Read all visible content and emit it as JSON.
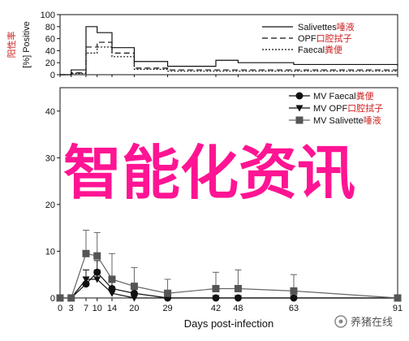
{
  "chart_data": [
    {
      "type": "line",
      "style": "step",
      "ylabel": "[%] Positive",
      "ylabel_annotation": "阳性率",
      "ylim": [
        0,
        100
      ],
      "yticks": [
        0,
        20,
        40,
        60,
        80,
        100
      ],
      "x": [
        0,
        3,
        7,
        10,
        14,
        20,
        29,
        42,
        48,
        63,
        91
      ],
      "xlim": [
        0,
        91
      ],
      "legend_position": "top-right",
      "series": [
        {
          "name": "Salivettes",
          "name_cn": "唾液",
          "dash": "solid",
          "values": [
            0,
            8,
            80,
            70,
            45,
            22,
            14,
            24,
            20,
            17,
            14
          ]
        },
        {
          "name": "OPF",
          "name_cn": "口腔拭子",
          "dash": "dashed",
          "values": [
            0,
            3,
            46,
            54,
            36,
            11,
            8,
            8,
            8,
            8,
            8
          ]
        },
        {
          "name": "Faecal",
          "name_cn": "粪便",
          "dash": "dotted",
          "values": [
            0,
            2,
            36,
            46,
            30,
            9,
            6,
            6,
            6,
            6,
            6
          ]
        }
      ]
    },
    {
      "type": "line",
      "ylabel": "",
      "xlabel": "Days post-infection",
      "ylim": [
        0,
        45
      ],
      "yticks": [
        0,
        10,
        20,
        30,
        40
      ],
      "x": [
        0,
        3,
        7,
        10,
        14,
        20,
        29,
        42,
        48,
        63,
        91
      ],
      "xlim": [
        0,
        91
      ],
      "legend_position": "top-right",
      "series": [
        {
          "name": "MV Faecal",
          "name_cn": "粪便",
          "marker": "circle",
          "values": [
            0,
            0,
            3,
            5.5,
            2,
            1,
            0,
            0,
            0,
            0,
            0
          ],
          "errors": [
            0,
            0,
            1.5,
            2.5,
            2,
            1,
            0,
            0,
            0,
            0,
            0
          ]
        },
        {
          "name": "MV OPF",
          "name_cn": "口腔拭子",
          "marker": "triangle-down",
          "values": [
            0,
            0,
            4,
            4,
            1,
            0,
            0,
            0,
            0,
            0,
            0
          ],
          "errors": [
            0,
            0,
            2,
            2,
            1,
            0,
            0,
            0,
            0,
            0,
            0
          ]
        },
        {
          "name": "MV Salivette",
          "name_cn": "唾液",
          "marker": "square",
          "values": [
            0,
            0,
            9.5,
            9,
            4,
            2.5,
            1,
            2,
            2,
            1.5,
            0
          ],
          "errors": [
            0,
            0,
            5,
            5,
            5.5,
            4,
            3,
            3.5,
            4,
            3.5,
            0
          ]
        }
      ]
    }
  ],
  "watermark_text": "智能化资讯",
  "footer_brand": "养猪在线",
  "colors": {
    "watermark": "#ff1493",
    "annotation": "#cc2222",
    "ink": "#111111"
  }
}
